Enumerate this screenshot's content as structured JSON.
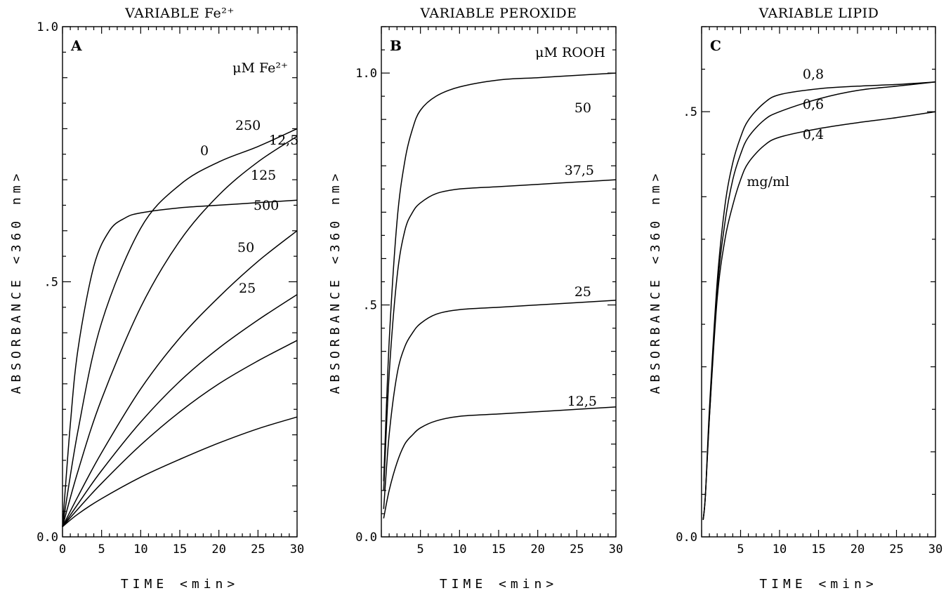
{
  "chart_data": [
    {
      "type": "line",
      "panel_label": "A",
      "title": "VARIABLE Fe²⁺",
      "xlabel": "TIME  <min>",
      "ylabel": "ABSORBANCE  <360 nm>",
      "unit_label": "μM Fe²⁺",
      "xlim": [
        0,
        30
      ],
      "ylim": [
        0,
        1.0
      ],
      "x_ticks": [
        0,
        5,
        10,
        15,
        20,
        25,
        30
      ],
      "x_tick_labels": [
        "0",
        "5",
        "10",
        "15",
        "20",
        "25",
        "30"
      ],
      "y_ticks": [
        0,
        0.5,
        1.0
      ],
      "y_tick_labels": [
        "0.0",
        ".5",
        "1.0"
      ],
      "series": [
        {
          "name": "0",
          "x": [
            0,
            2,
            5,
            10,
            15,
            20,
            25,
            30
          ],
          "y": [
            0.02,
            0.045,
            0.075,
            0.117,
            0.152,
            0.184,
            0.212,
            0.235
          ]
        },
        {
          "name": "12,5",
          "x": [
            0,
            2,
            5,
            10,
            15,
            20,
            25,
            30
          ],
          "y": [
            0.02,
            0.055,
            0.105,
            0.18,
            0.245,
            0.3,
            0.345,
            0.385
          ]
        },
        {
          "name": "25",
          "x": [
            0,
            2,
            5,
            10,
            15,
            20,
            25,
            30
          ],
          "y": [
            0.02,
            0.065,
            0.13,
            0.225,
            0.305,
            0.37,
            0.425,
            0.475
          ]
        },
        {
          "name": "50",
          "x": [
            0,
            2,
            5,
            10,
            15,
            20,
            25,
            30
          ],
          "y": [
            0.02,
            0.08,
            0.165,
            0.29,
            0.39,
            0.47,
            0.54,
            0.6
          ]
        },
        {
          "name": "125",
          "x": [
            0,
            2,
            5,
            10,
            15,
            20,
            25,
            30
          ],
          "y": [
            0.02,
            0.13,
            0.27,
            0.45,
            0.58,
            0.67,
            0.735,
            0.785
          ]
        },
        {
          "name": "250",
          "x": [
            0,
            2,
            5,
            10,
            15,
            20,
            25,
            30
          ],
          "y": [
            0.02,
            0.21,
            0.42,
            0.605,
            0.69,
            0.735,
            0.765,
            0.8
          ]
        },
        {
          "name": "500",
          "x": [
            0,
            1,
            2,
            4,
            6,
            8,
            10,
            15,
            20,
            25,
            30
          ],
          "y": [
            0.02,
            0.22,
            0.37,
            0.53,
            0.6,
            0.625,
            0.635,
            0.645,
            0.65,
            0.655,
            0.66
          ]
        }
      ]
    },
    {
      "type": "line",
      "panel_label": "B",
      "title": "VARIABLE PEROXIDE",
      "xlabel": "TIME  <min>",
      "ylabel": "ABSORBANCE  <360 nm>",
      "unit_label": "μM ROOH",
      "xlim": [
        0,
        30
      ],
      "ylim": [
        0,
        1.1
      ],
      "x_ticks": [
        5,
        10,
        15,
        20,
        25,
        30
      ],
      "x_tick_labels": [
        "5",
        "10",
        "15",
        "20",
        "25",
        "30"
      ],
      "y_ticks": [
        0,
        0.5,
        1.0
      ],
      "y_tick_labels": [
        "0.0",
        ".5",
        "1.0"
      ],
      "series": [
        {
          "name": "12,5",
          "x": [
            0.3,
            1,
            2,
            3,
            4,
            5,
            7,
            10,
            15,
            20,
            25,
            30
          ],
          "y": [
            0.04,
            0.1,
            0.16,
            0.2,
            0.22,
            0.235,
            0.25,
            0.26,
            0.265,
            0.27,
            0.275,
            0.28
          ]
        },
        {
          "name": "25",
          "x": [
            0.3,
            1,
            2,
            3,
            4,
            5,
            7,
            10,
            15,
            20,
            25,
            30
          ],
          "y": [
            0.06,
            0.22,
            0.35,
            0.41,
            0.44,
            0.46,
            0.48,
            0.49,
            0.495,
            0.5,
            0.505,
            0.51
          ]
        },
        {
          "name": "37,5",
          "x": [
            0.3,
            1,
            2,
            3,
            4,
            5,
            7,
            10,
            15,
            20,
            25,
            30
          ],
          "y": [
            0.1,
            0.35,
            0.56,
            0.66,
            0.7,
            0.72,
            0.74,
            0.75,
            0.755,
            0.76,
            0.765,
            0.77
          ]
        },
        {
          "name": "50",
          "x": [
            0.3,
            1,
            2,
            3,
            4,
            5,
            7,
            10,
            15,
            20,
            25,
            30
          ],
          "y": [
            0.12,
            0.42,
            0.68,
            0.81,
            0.88,
            0.92,
            0.95,
            0.97,
            0.985,
            0.99,
            0.995,
            1.0
          ]
        }
      ]
    },
    {
      "type": "line",
      "panel_label": "C",
      "title": "VARIABLE LIPID",
      "xlabel": "TIME  <min>",
      "ylabel": "ABSORBANCE  <360 nm>",
      "unit_label": "mg/ml",
      "xlim": [
        0,
        30
      ],
      "ylim": [
        0,
        0.6
      ],
      "x_ticks": [
        5,
        10,
        15,
        20,
        25,
        30
      ],
      "x_tick_labels": [
        "5",
        "10",
        "15",
        "20",
        "25",
        "30"
      ],
      "y_ticks": [
        0,
        0.5
      ],
      "y_tick_labels": [
        "0.0",
        ".5"
      ],
      "series": [
        {
          "name": "0,8",
          "x": [
            0.2,
            0.5,
            1,
            2,
            3,
            4,
            5,
            6,
            8,
            10,
            15,
            20,
            25,
            30
          ],
          "y": [
            0.02,
            0.05,
            0.15,
            0.3,
            0.39,
            0.44,
            0.47,
            0.49,
            0.51,
            0.52,
            0.527,
            0.53,
            0.532,
            0.535
          ]
        },
        {
          "name": "0,6",
          "x": [
            0.2,
            0.5,
            1,
            2,
            3,
            4,
            5,
            6,
            8,
            10,
            15,
            20,
            25,
            30
          ],
          "y": [
            0.02,
            0.05,
            0.14,
            0.29,
            0.37,
            0.42,
            0.45,
            0.47,
            0.49,
            0.5,
            0.515,
            0.525,
            0.53,
            0.535
          ]
        },
        {
          "name": "0,4",
          "x": [
            0.2,
            0.5,
            1,
            2,
            3,
            4,
            5,
            6,
            8,
            10,
            15,
            20,
            25,
            30
          ],
          "y": [
            0.02,
            0.05,
            0.14,
            0.28,
            0.35,
            0.39,
            0.42,
            0.44,
            0.46,
            0.47,
            0.48,
            0.487,
            0.493,
            0.5
          ]
        }
      ]
    }
  ]
}
